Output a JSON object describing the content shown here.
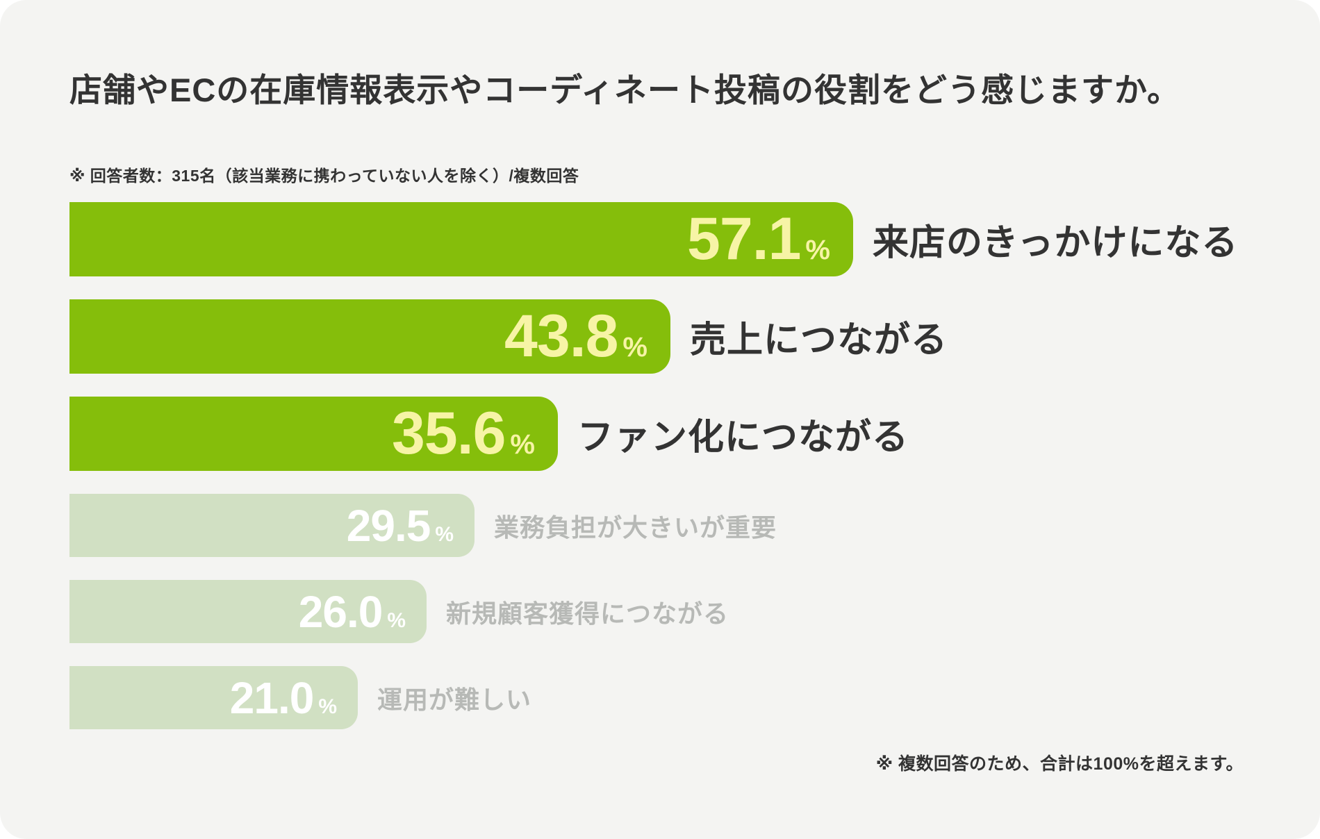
{
  "page": {
    "background": "#FFFFFF",
    "panel_background": "#F4F4F2"
  },
  "chart_data": {
    "type": "bar",
    "orientation": "horizontal",
    "title": "店舗やECの在庫情報表示やコーディネート投稿の役割をどう感じますか。",
    "subtitle_note": "※ 回答者数：315名（該当業務に携わっていない人を除く）/複数回答",
    "footnote": "※ 複数回答のため、合計は100%を超えます。",
    "unit": "%",
    "categories": [
      "来店のきっかけになる",
      "売上につながる",
      "ファン化につながる",
      "業務負担が大きいが重要",
      "新規顧客獲得につながる",
      "運用が難しい"
    ],
    "values": [
      57.1,
      43.8,
      35.6,
      29.5,
      26.0,
      21.0
    ],
    "value_labels": [
      "57.1",
      "43.8",
      "35.6",
      "29.5",
      "26.0",
      "21.0"
    ],
    "emphasized": [
      true,
      true,
      true,
      false,
      false,
      false
    ],
    "xlim": [
      0,
      60
    ],
    "grid": false,
    "legend": "none",
    "colors": {
      "bar_strong": "#85BE0B",
      "bar_muted": "#D1E0C3",
      "value_strong": "#F7F4A6",
      "value_muted": "#FFFFFF",
      "label_strong": "#333333",
      "label_muted": "#B7B9B6",
      "text": "#333333"
    }
  }
}
